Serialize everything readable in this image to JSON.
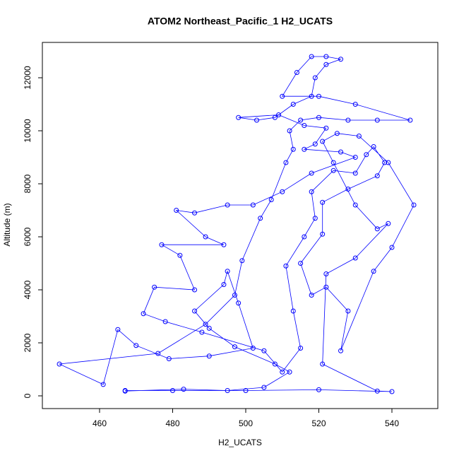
{
  "chart_data": {
    "type": "scatter",
    "title": "ATOM2 Northeast_Pacific_1 H2_UCATS",
    "xlabel": "H2_UCATS",
    "ylabel": "Altitude (m)",
    "color": "#0000ff",
    "lines": true,
    "xlim": [
      444.35,
      552.56
    ],
    "ylim": [
      -480,
      13333
    ],
    "xticks": [
      460,
      480,
      500,
      520,
      540
    ],
    "yticks": [
      0,
      2000,
      4000,
      6000,
      8000,
      10000,
      12000
    ],
    "x": [
      467,
      483,
      495,
      505,
      512,
      508,
      497,
      490,
      486,
      494,
      495,
      498,
      502,
      490,
      479,
      470,
      465,
      461,
      449,
      476,
      489,
      497,
      499,
      504,
      507,
      511,
      513,
      512,
      515,
      520,
      528,
      536,
      545,
      530,
      520,
      510,
      514,
      518,
      522,
      526,
      522,
      519,
      518,
      513,
      508,
      503,
      498,
      509,
      516,
      522,
      519,
      516,
      526,
      530,
      518,
      510,
      502,
      495,
      486,
      481,
      489,
      494,
      477,
      482,
      486,
      475,
      472,
      478,
      488,
      505,
      510,
      515,
      513,
      511,
      516,
      519,
      518,
      524,
      530,
      533,
      535,
      538,
      536,
      528,
      521,
      521,
      515,
      518,
      522,
      528,
      526,
      535,
      540,
      546,
      539,
      531,
      525,
      521,
      524,
      530,
      536,
      539,
      530,
      522,
      521,
      536,
      540,
      520,
      500,
      480,
      467
    ],
    "values": [
      180,
      250,
      200,
      320,
      900,
      1200,
      1850,
      2550,
      3200,
      4200,
      4700,
      3500,
      1800,
      1500,
      1400,
      1900,
      2500,
      430,
      1200,
      1600,
      2700,
      3800,
      5100,
      6700,
      7400,
      8800,
      9300,
      10000,
      10400,
      10500,
      10400,
      10400,
      10400,
      11000,
      11300,
      11300,
      12200,
      12800,
      12800,
      12700,
      12500,
      12000,
      11300,
      11000,
      10500,
      10400,
      10500,
      10600,
      10200,
      10100,
      9500,
      9300,
      9200,
      9000,
      8400,
      7700,
      7200,
      7200,
      6900,
      7000,
      6000,
      5700,
      5700,
      5300,
      4000,
      4100,
      3100,
      2800,
      2400,
      1700,
      900,
      1800,
      3200,
      4900,
      6000,
      6700,
      7700,
      8500,
      8400,
      9100,
      9400,
      8800,
      8300,
      7800,
      7300,
      6100,
      5000,
      3800,
      4100,
      3200,
      1700,
      4700,
      5600,
      7200,
      8800,
      9800,
      9900,
      9600,
      8800,
      7200,
      6300,
      6500,
      5200,
      4600,
      1200,
      180,
      160,
      230,
      200,
      200,
      200
    ]
  }
}
